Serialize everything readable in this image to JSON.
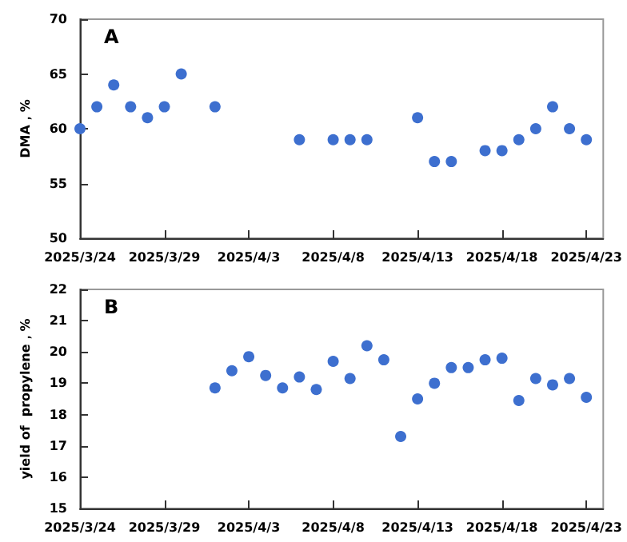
{
  "chart_data": [
    {
      "type": "scatter",
      "title": "A",
      "ylabel": "DMA，%",
      "color": "#3d6fcf",
      "marker": "circle",
      "grid": false,
      "x": [
        "2025-03-24",
        "2025-03-25",
        "2025-03-26",
        "2025-03-27",
        "2025-03-28",
        "2025-03-29",
        "2025-03-30",
        "2025-04-01",
        "2025-04-06",
        "2025-04-08",
        "2025-04-09",
        "2025-04-10",
        "2025-04-13",
        "2025-04-14",
        "2025-04-15",
        "2025-04-17",
        "2025-04-18",
        "2025-04-19",
        "2025-04-20",
        "2025-04-21",
        "2025-04-22",
        "2025-04-23"
      ],
      "values": [
        60,
        62,
        64,
        62,
        61,
        62,
        65,
        62,
        59,
        59,
        59,
        59,
        61,
        57,
        57,
        58,
        58,
        59,
        60,
        62,
        60,
        59
      ],
      "xlim": [
        "2025-03-24",
        "2025-04-24"
      ],
      "xticks": [
        {
          "value": "2025-03-24",
          "label": "2025/3/24"
        },
        {
          "value": "2025-03-29",
          "label": "2025/3/29"
        },
        {
          "value": "2025-04-03",
          "label": "2025/4/3"
        },
        {
          "value": "2025-04-08",
          "label": "2025/4/8"
        },
        {
          "value": "2025-04-13",
          "label": "2025/4/13"
        },
        {
          "value": "2025-04-18",
          "label": "2025/4/18"
        },
        {
          "value": "2025-04-23",
          "label": "2025/4/23"
        }
      ],
      "ylim": [
        50,
        70
      ],
      "yticks": [
        50,
        55,
        60,
        65,
        70
      ]
    },
    {
      "type": "scatter",
      "title": "B",
      "ylabel": "yield of  propylene，%",
      "color": "#3d6fcf",
      "marker": "circle",
      "grid": false,
      "x": [
        "2025-04-01",
        "2025-04-02",
        "2025-04-03",
        "2025-04-04",
        "2025-04-05",
        "2025-04-06",
        "2025-04-07",
        "2025-04-08",
        "2025-04-09",
        "2025-04-10",
        "2025-04-11",
        "2025-04-12",
        "2025-04-13",
        "2025-04-14",
        "2025-04-15",
        "2025-04-16",
        "2025-04-17",
        "2025-04-18",
        "2025-04-19",
        "2025-04-20",
        "2025-04-21",
        "2025-04-22",
        "2025-04-23"
      ],
      "values": [
        18.85,
        19.4,
        19.85,
        19.25,
        18.85,
        19.2,
        18.8,
        19.7,
        19.15,
        20.2,
        19.75,
        17.3,
        18.5,
        19.0,
        19.5,
        19.5,
        19.75,
        19.8,
        18.45,
        19.15,
        18.95,
        19.15,
        18.55
      ],
      "xlim": [
        "2025-03-24",
        "2025-04-24"
      ],
      "xticks": [
        {
          "value": "2025-03-24",
          "label": "2025/3/24"
        },
        {
          "value": "2025-03-29",
          "label": "2025/3/29"
        },
        {
          "value": "2025-04-03",
          "label": "2025/4/3"
        },
        {
          "value": "2025-04-08",
          "label": "2025/4/8"
        },
        {
          "value": "2025-04-13",
          "label": "2025/4/13"
        },
        {
          "value": "2025-04-18",
          "label": "2025/4/18"
        },
        {
          "value": "2025-04-23",
          "label": "2025/4/23"
        }
      ],
      "ylim": [
        15,
        22
      ],
      "yticks": [
        15,
        16,
        17,
        18,
        19,
        20,
        21,
        22
      ]
    }
  ]
}
